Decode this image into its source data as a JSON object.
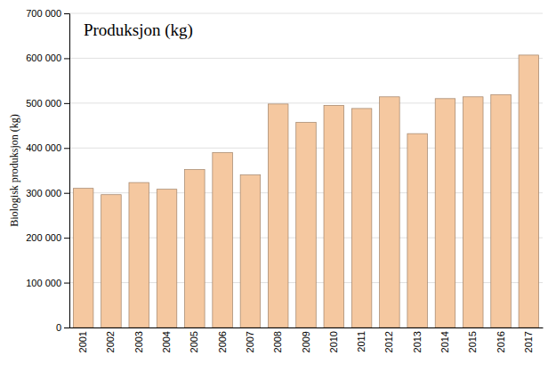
{
  "chart_data": {
    "type": "bar",
    "title": "Produksjon (kg)",
    "ylabel": "Biologisk produksjon (kg)",
    "categories": [
      "2001",
      "2002",
      "2003",
      "2004",
      "2005",
      "2006",
      "2007",
      "2008",
      "2009",
      "2010",
      "2011",
      "2012",
      "2013",
      "2014",
      "2015",
      "2016",
      "2017"
    ],
    "values": [
      310000,
      296000,
      323000,
      308000,
      352000,
      390000,
      340000,
      498000,
      457000,
      495000,
      488000,
      514000,
      432000,
      510000,
      514000,
      519000,
      607000
    ],
    "color": "#F5C8A0",
    "ylim": [
      0,
      700000
    ],
    "yticks": [
      0,
      {
        "value": 100000,
        "label": "100 000"
      },
      {
        "value": 200000,
        "label": "200 000"
      },
      {
        "value": 300000,
        "label": "300 000"
      },
      {
        "value": 400000,
        "label": "400 000"
      },
      {
        "value": 500000,
        "label": "500 000"
      },
      {
        "value": 600000,
        "label": "600 000"
      },
      {
        "value": 700000,
        "label": "700 000"
      }
    ],
    "grid": true
  }
}
